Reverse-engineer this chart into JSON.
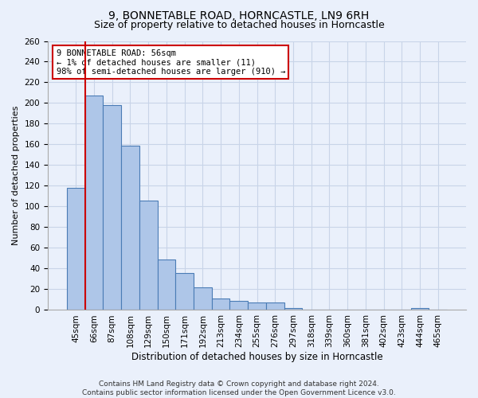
{
  "title1": "9, BONNETABLE ROAD, HORNCASTLE, LN9 6RH",
  "title2": "Size of property relative to detached houses in Horncastle",
  "xlabel": "Distribution of detached houses by size in Horncastle",
  "ylabel": "Number of detached properties",
  "categories": [
    "45sqm",
    "66sqm",
    "87sqm",
    "108sqm",
    "129sqm",
    "150sqm",
    "171sqm",
    "192sqm",
    "213sqm",
    "234sqm",
    "255sqm",
    "276sqm",
    "297sqm",
    "318sqm",
    "339sqm",
    "360sqm",
    "381sqm",
    "402sqm",
    "423sqm",
    "444sqm",
    "465sqm"
  ],
  "values": [
    118,
    207,
    198,
    159,
    106,
    49,
    36,
    22,
    11,
    9,
    7,
    7,
    2,
    0,
    0,
    0,
    0,
    0,
    0,
    2,
    0
  ],
  "bar_color": "#aec6e8",
  "bar_edge_color": "#4a7cb5",
  "grid_color": "#c8d4e8",
  "background_color": "#eaf0fb",
  "vline_color": "#cc0000",
  "annotation_text": "9 BONNETABLE ROAD: 56sqm\n← 1% of detached houses are smaller (11)\n98% of semi-detached houses are larger (910) →",
  "annotation_box_color": "#ffffff",
  "annotation_box_edge": "#cc0000",
  "ylim": [
    0,
    260
  ],
  "yticks": [
    0,
    20,
    40,
    60,
    80,
    100,
    120,
    140,
    160,
    180,
    200,
    220,
    240,
    260
  ],
  "footnote": "Contains HM Land Registry data © Crown copyright and database right 2024.\nContains public sector information licensed under the Open Government Licence v3.0.",
  "title1_fontsize": 10,
  "title2_fontsize": 9,
  "xlabel_fontsize": 8.5,
  "ylabel_fontsize": 8,
  "tick_fontsize": 7.5,
  "footnote_fontsize": 6.5
}
